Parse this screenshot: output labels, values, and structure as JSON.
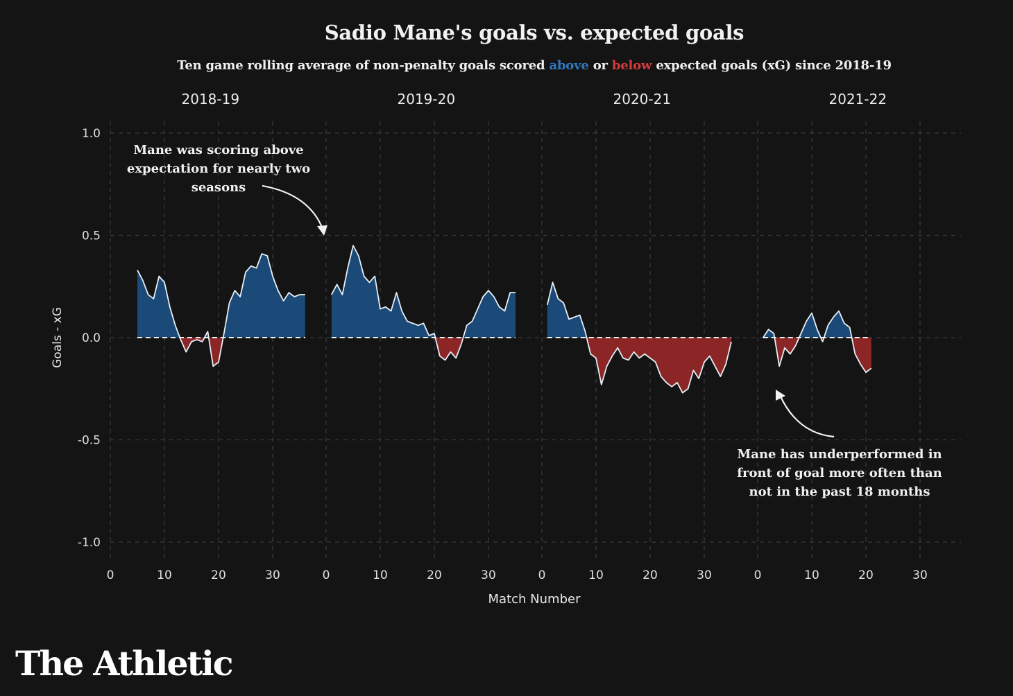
{
  "title": "Sadio Mane's goals vs. expected goals",
  "subtitle": {
    "before": "Ten game rolling average of non-penalty goals scored",
    "above": "above",
    "or": "or",
    "below": "below",
    "after": "expected goals (xG) since 2018-19"
  },
  "colors": {
    "background": "#141414",
    "above": "#1b4a78",
    "below": "#8c2626",
    "line": "#e6eef5",
    "grid": "#3a3a3a",
    "above_text": "#2f78bd",
    "below_text": "#d43b3b"
  },
  "annotations": {
    "left": "Mane was scoring above expectation for nearly two seasons",
    "right": "Mane has underperformed in front of goal more often than not in the past 18 months"
  },
  "brand": "The Athletic",
  "chart_data": {
    "type": "area",
    "xlabel": "Match Number",
    "ylabel": "Goals - xG",
    "ylim": [
      -1.0,
      1.0
    ],
    "yticks": [
      1.0,
      0.5,
      0.0,
      -0.5,
      -1.0
    ],
    "ytick_labels": [
      "1.0",
      "0.5",
      "0.0",
      "-0.5",
      "-1.0"
    ],
    "xlim": [
      0,
      30
    ],
    "xticks": [
      0,
      10,
      20,
      30
    ],
    "grid": true,
    "panels": [
      {
        "season": "2018-19",
        "x": [
          5,
          6,
          7,
          8,
          9,
          10,
          11,
          12,
          13,
          14,
          15,
          16,
          17,
          18,
          19,
          20,
          21,
          22,
          23,
          24,
          25,
          26,
          27,
          28,
          29,
          30,
          31,
          32,
          33,
          34,
          35,
          36
        ],
        "y": [
          0.33,
          0.28,
          0.21,
          0.19,
          0.3,
          0.27,
          0.15,
          0.06,
          -0.01,
          -0.07,
          -0.02,
          -0.01,
          -0.02,
          0.03,
          -0.14,
          -0.12,
          0.02,
          0.17,
          0.23,
          0.2,
          0.32,
          0.35,
          0.34,
          0.41,
          0.4,
          0.3,
          0.23,
          0.18,
          0.22,
          0.2,
          0.21,
          0.21
        ]
      },
      {
        "season": "2019-20",
        "x": [
          1,
          2,
          3,
          4,
          5,
          6,
          7,
          8,
          9,
          10,
          11,
          12,
          13,
          14,
          15,
          16,
          17,
          18,
          19,
          20,
          21,
          22,
          23,
          24,
          25,
          26,
          27,
          28,
          29,
          30,
          31,
          32,
          33,
          34,
          35
        ],
        "y": [
          0.21,
          0.26,
          0.21,
          0.34,
          0.45,
          0.4,
          0.3,
          0.27,
          0.3,
          0.14,
          0.15,
          0.13,
          0.22,
          0.13,
          0.08,
          0.07,
          0.06,
          0.07,
          0.01,
          0.02,
          -0.09,
          -0.11,
          -0.07,
          -0.1,
          -0.03,
          0.06,
          0.08,
          0.14,
          0.2,
          0.23,
          0.2,
          0.15,
          0.13,
          0.22,
          0.22
        ]
      },
      {
        "season": "2020-21",
        "x": [
          1,
          2,
          3,
          4,
          5,
          6,
          7,
          8,
          9,
          10,
          11,
          12,
          13,
          14,
          15,
          16,
          17,
          18,
          19,
          20,
          21,
          22,
          23,
          24,
          25,
          26,
          27,
          28,
          29,
          30,
          31,
          32,
          33,
          34,
          35
        ],
        "y": [
          0.16,
          0.27,
          0.19,
          0.17,
          0.09,
          0.1,
          0.11,
          0.03,
          -0.08,
          -0.1,
          -0.23,
          -0.14,
          -0.09,
          -0.05,
          -0.1,
          -0.11,
          -0.07,
          -0.1,
          -0.08,
          -0.1,
          -0.12,
          -0.19,
          -0.22,
          -0.24,
          -0.22,
          -0.27,
          -0.25,
          -0.16,
          -0.2,
          -0.12,
          -0.09,
          -0.14,
          -0.19,
          -0.13,
          -0.02
        ]
      },
      {
        "season": "2021-22",
        "x": [
          1,
          2,
          3,
          4,
          5,
          6,
          7,
          8,
          9,
          10,
          11,
          12,
          13,
          14,
          15,
          16,
          17,
          18,
          19,
          20,
          21
        ],
        "y": [
          0.0,
          0.04,
          0.02,
          -0.14,
          -0.05,
          -0.08,
          -0.04,
          0.02,
          0.08,
          0.12,
          0.04,
          -0.02,
          0.06,
          0.1,
          0.13,
          0.07,
          0.05,
          -0.08,
          -0.13,
          -0.17,
          -0.15
        ]
      }
    ]
  }
}
